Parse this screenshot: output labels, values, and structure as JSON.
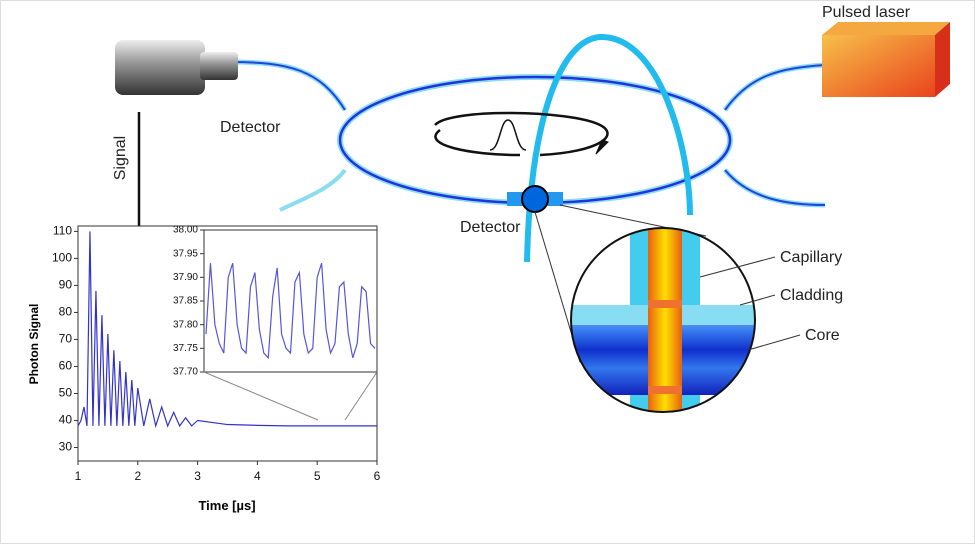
{
  "labels": {
    "pulsed_laser": "Pulsed laser",
    "detector_top": "Detector",
    "detector_bottom": "Detector",
    "signal": "Signal",
    "capillary": "Capillary",
    "cladding": "Cladding",
    "core": "Core"
  },
  "chart_data": [
    {
      "type": "line",
      "xlabel": "Time [µs]",
      "ylabel": "Photon Signal",
      "x": [
        1.0,
        1.05,
        1.1,
        1.15,
        1.2,
        1.25,
        1.3,
        1.35,
        1.4,
        1.45,
        1.5,
        1.55,
        1.6,
        1.65,
        1.7,
        1.75,
        1.8,
        1.85,
        1.9,
        1.95,
        2.0,
        2.1,
        2.2,
        2.3,
        2.4,
        2.5,
        2.6,
        2.7,
        2.8,
        2.9,
        3.0,
        3.5,
        4.0,
        4.5,
        5.0,
        5.5,
        6.0
      ],
      "series": [
        {
          "color": "#3333cc",
          "values": [
            38,
            40,
            45,
            38,
            110,
            38,
            88,
            38,
            79,
            38,
            72,
            38,
            66,
            38,
            62,
            38,
            58,
            38,
            55,
            38,
            52,
            38,
            48,
            38,
            45,
            38,
            43,
            38,
            41,
            38,
            40,
            38.5,
            38.2,
            38,
            38,
            38,
            38
          ]
        }
      ],
      "xlim": [
        1,
        6
      ],
      "ylim": [
        25,
        112
      ],
      "xticks": [
        1,
        2,
        3,
        4,
        5,
        6
      ],
      "yticks": [
        30,
        40,
        50,
        60,
        70,
        80,
        90,
        100,
        110
      ]
    },
    {
      "type": "line",
      "series": [
        {
          "color": "#5555dd",
          "values": [
            37.78,
            37.93,
            37.8,
            37.76,
            37.74,
            37.9,
            37.93,
            37.8,
            37.75,
            37.74,
            37.88,
            37.91,
            37.79,
            37.74,
            37.73,
            37.86,
            37.92,
            37.78,
            37.75,
            37.74,
            37.89,
            37.91,
            37.78,
            37.74,
            37.75,
            37.9,
            37.93,
            37.79,
            37.74,
            37.76,
            37.88,
            37.89,
            37.78,
            37.73,
            37.76,
            37.88,
            37.87,
            37.76,
            37.75
          ]
        }
      ],
      "ylim": [
        37.7,
        38.0
      ],
      "yticks": [
        {
          "value": 37.7,
          "label": "37.70"
        },
        37.75,
        {
          "value": 37.8,
          "label": "37.80"
        },
        37.85,
        {
          "value": 37.9,
          "label": "37.90"
        },
        37.95,
        {
          "value": 38,
          "label": "38.00"
        }
      ]
    }
  ]
}
